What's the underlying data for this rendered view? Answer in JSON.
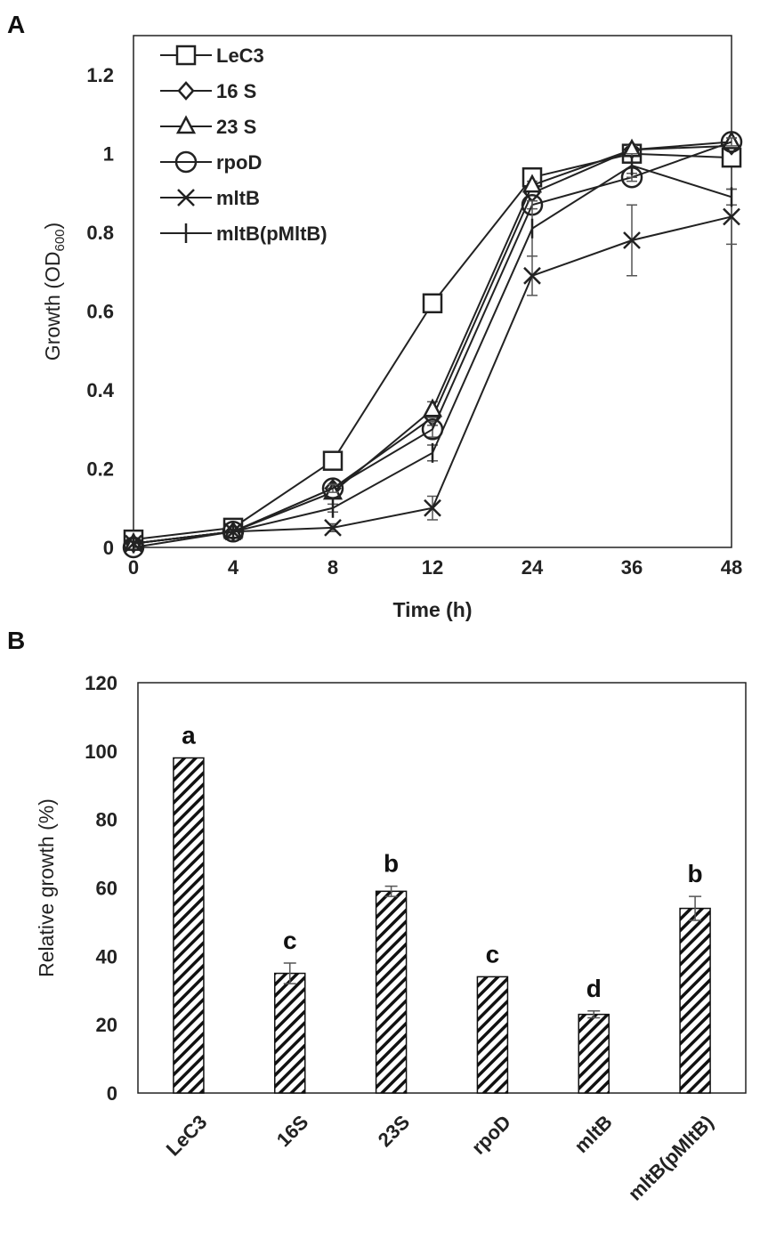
{
  "panels": {
    "a": "A",
    "b": "B"
  },
  "chart_data": [
    {
      "type": "line",
      "title": "",
      "xlabel": "Time (h)",
      "ylabel_main": "Growth (OD",
      "ylabel_sub": "600",
      "ylabel_close": ")",
      "categories": [
        "0",
        "4",
        "8",
        "12",
        "24",
        "36",
        "48"
      ],
      "y_ticks": [
        "0",
        "0.2",
        "0.4",
        "0.6",
        "0.8",
        "1",
        "1.2"
      ],
      "ylim": [
        0,
        1.3
      ],
      "legend_position": "top-left",
      "series": [
        {
          "name": "LeC3",
          "marker": "square",
          "values": [
            0.02,
            0.05,
            0.22,
            0.62,
            0.94,
            1.0,
            0.99
          ],
          "errors": [
            0,
            0,
            0.01,
            0.01,
            0.01,
            0.01,
            0.01
          ]
        },
        {
          "name": "16 S",
          "marker": "diamond",
          "values": [
            0.01,
            0.04,
            0.15,
            0.33,
            0.9,
            1.01,
            1.02
          ],
          "errors": [
            0,
            0,
            0.01,
            0.02,
            0.01,
            0.01,
            0.01
          ]
        },
        {
          "name": "23 S",
          "marker": "triangle",
          "values": [
            0.01,
            0.04,
            0.14,
            0.35,
            0.92,
            1.01,
            1.03
          ],
          "errors": [
            0,
            0,
            0.01,
            0.02,
            0.01,
            0.01,
            0.01
          ]
        },
        {
          "name": "rpoD",
          "marker": "circle",
          "values": [
            0.0,
            0.04,
            0.15,
            0.3,
            0.87,
            0.94,
            1.03
          ],
          "errors": [
            0,
            0,
            0.01,
            0.02,
            0.01,
            0.01,
            0.01
          ]
        },
        {
          "name": "mltB",
          "marker": "x",
          "values": [
            0.01,
            0.04,
            0.05,
            0.1,
            0.69,
            0.78,
            0.84
          ],
          "errors": [
            0,
            0,
            0.01,
            0.03,
            0.05,
            0.09,
            0.07
          ]
        },
        {
          "name": "mltB(pMltB)",
          "marker": "plus",
          "values": [
            0.01,
            0.04,
            0.1,
            0.24,
            0.81,
            0.97,
            0.89
          ],
          "errors": [
            0,
            0,
            0.01,
            0.02,
            0.07,
            0.03,
            0.02
          ]
        }
      ]
    },
    {
      "type": "bar",
      "title": "",
      "xlabel": "",
      "ylabel": "Relative growth (%)",
      "categories": [
        "LeC3",
        "16S",
        "23S",
        "rpoD",
        "mltB",
        "mltB(pMltB)"
      ],
      "values": [
        98,
        35,
        59,
        34,
        23,
        54
      ],
      "errors": [
        0,
        3,
        1.5,
        0,
        1,
        3.5
      ],
      "significance": [
        "a",
        "c",
        "b",
        "c",
        "d",
        "b"
      ],
      "y_ticks": [
        "0",
        "20",
        "40",
        "60",
        "80",
        "100",
        "120"
      ],
      "ylim": [
        0,
        120
      ],
      "fill": "diagonal-hatch"
    }
  ]
}
